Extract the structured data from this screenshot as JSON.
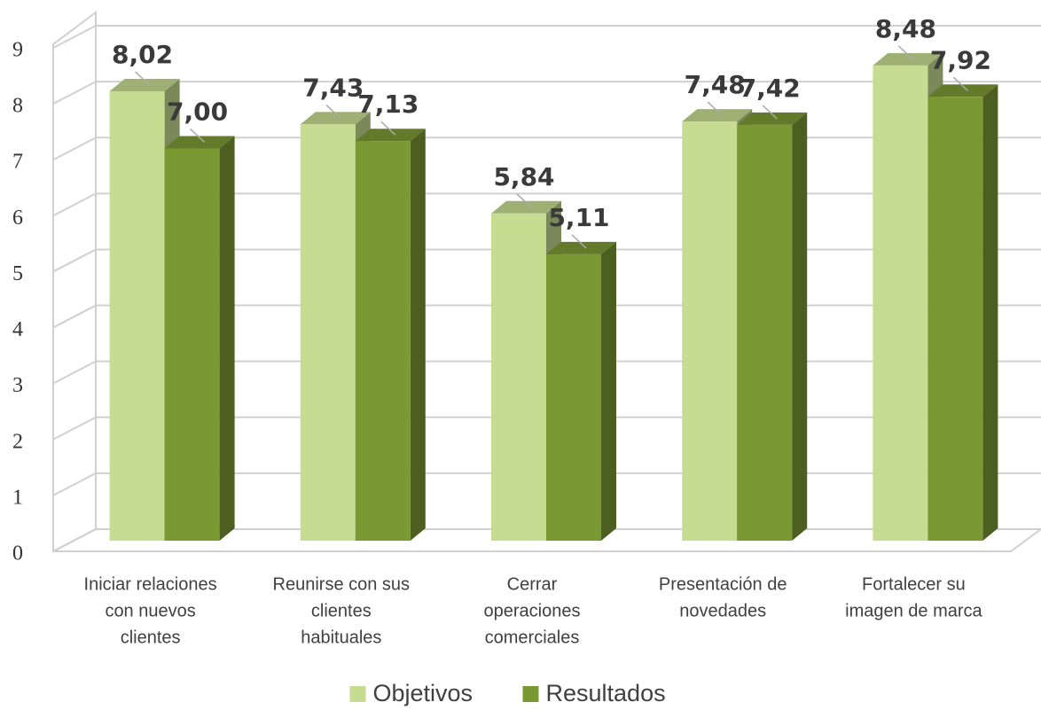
{
  "chart_data": {
    "type": "bar3d",
    "categories": [
      [
        "Iniciar relaciones",
        "con nuevos",
        "clientes"
      ],
      [
        "Reunirse con sus",
        "clientes",
        "habituales"
      ],
      [
        "Cerrar",
        "operaciones",
        "comerciales"
      ],
      [
        "Presentación de",
        "novedades"
      ],
      [
        "Fortalecer su",
        "imagen de marca"
      ]
    ],
    "series": [
      {
        "name": "Objetivos",
        "color": "#c6dc90",
        "values": [
          8.02,
          7.43,
          5.84,
          7.48,
          8.48
        ],
        "value_labels": [
          "8,02",
          "7,43",
          "5,84",
          "7,48",
          "8,48"
        ]
      },
      {
        "name": "Resultados",
        "color": "#7b9933",
        "values": [
          7.0,
          7.13,
          5.11,
          7.42,
          7.92
        ],
        "value_labels": [
          "7,00",
          "7,13",
          "5,11",
          "7,42",
          "7,92"
        ]
      }
    ],
    "ylim": [
      0,
      9
    ],
    "yticks": [
      0,
      1,
      2,
      3,
      4,
      5,
      6,
      7,
      8,
      9
    ],
    "grid": true,
    "legend": "bottom"
  }
}
